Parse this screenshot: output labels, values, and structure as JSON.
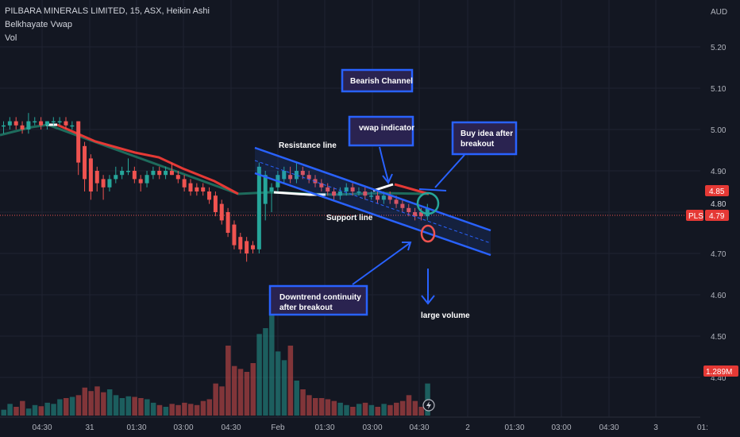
{
  "legend": {
    "symbol_line": "PILBARA MINERALS LIMITED, 15, ASX, Heikin Ashi",
    "indicator_1": "Belkhayate Vwap",
    "indicator_2": "Vol"
  },
  "colors": {
    "background": "#131722",
    "up": "#26a69a",
    "down": "#ef5350",
    "vwap_down": "#e53935",
    "vwap_base": "#1e6b5c",
    "vwap_white": "#ffffff",
    "annotation": "#2962ff",
    "annotation_fill": "#2a2350"
  },
  "price_axis": {
    "currency": "AUD",
    "ticks": [
      "5.20",
      "5.10",
      "5.00",
      "4.90",
      "4.80",
      "4.70",
      "4.60",
      "4.50",
      "4.40"
    ],
    "tags": {
      "price_high": "4.85",
      "price_mid": "4.80",
      "symbol": "PLS",
      "last": "4.79",
      "volume": "1.289M"
    }
  },
  "time_axis": {
    "ticks": [
      "04:30",
      "31",
      "01:30",
      "03:00",
      "04:30",
      "Feb",
      "01:30",
      "03:00",
      "04:30",
      "2",
      "01:30",
      "03:00",
      "04:30",
      "3",
      "01:"
    ]
  },
  "annotations": {
    "bearish_channel": "Bearish Channel",
    "vwap_indicator": "vwap indicator",
    "buy_idea_line1": "Buy idea after",
    "buy_idea_line2": "breakout",
    "resistance": "Resistance line",
    "support": "Support line",
    "downtrend_line1": "Downtrend continuity",
    "downtrend_line2": "after breakout",
    "large_volume": "large volume"
  },
  "chart_data": {
    "type": "candlestick",
    "title": "PILBARA MINERALS LIMITED, 15, ASX, Heikin Ashi",
    "ylim": [
      4.4,
      5.25
    ],
    "last_price": 4.79,
    "candles": [
      {
        "o": 5.01,
        "h": 5.02,
        "l": 4.99,
        "c": 5.01
      },
      {
        "o": 5.01,
        "h": 5.03,
        "l": 5.0,
        "c": 5.02
      },
      {
        "o": 5.02,
        "h": 5.03,
        "l": 5.0,
        "c": 5.01
      },
      {
        "o": 5.01,
        "h": 5.02,
        "l": 4.99,
        "c": 5.0
      },
      {
        "o": 5.0,
        "h": 5.04,
        "l": 4.99,
        "c": 5.02
      },
      {
        "o": 5.02,
        "h": 5.03,
        "l": 5.01,
        "c": 5.02
      },
      {
        "o": 5.02,
        "h": 5.03,
        "l": 5.0,
        "c": 5.01
      },
      {
        "o": 5.01,
        "h": 5.02,
        "l": 5.0,
        "c": 5.02
      },
      {
        "o": 5.02,
        "h": 5.03,
        "l": 5.01,
        "c": 5.02
      },
      {
        "o": 5.02,
        "h": 5.03,
        "l": 5.01,
        "c": 5.02
      },
      {
        "o": 5.02,
        "h": 5.03,
        "l": 5.0,
        "c": 5.01
      },
      {
        "o": 5.01,
        "h": 5.02,
        "l": 5.0,
        "c": 5.01
      },
      {
        "o": 5.02,
        "h": 5.02,
        "l": 4.89,
        "c": 4.92
      },
      {
        "o": 4.96,
        "h": 4.97,
        "l": 4.85,
        "c": 4.88
      },
      {
        "o": 4.93,
        "h": 4.94,
        "l": 4.83,
        "c": 4.85
      },
      {
        "o": 4.9,
        "h": 4.91,
        "l": 4.85,
        "c": 4.87
      },
      {
        "o": 4.88,
        "h": 4.89,
        "l": 4.83,
        "c": 4.86
      },
      {
        "o": 4.86,
        "h": 4.89,
        "l": 4.85,
        "c": 4.88
      },
      {
        "o": 4.88,
        "h": 4.91,
        "l": 4.87,
        "c": 4.89
      },
      {
        "o": 4.89,
        "h": 4.91,
        "l": 4.88,
        "c": 4.9
      },
      {
        "o": 4.9,
        "h": 4.93,
        "l": 4.89,
        "c": 4.9
      },
      {
        "o": 4.9,
        "h": 4.91,
        "l": 4.87,
        "c": 4.88
      },
      {
        "o": 4.88,
        "h": 4.89,
        "l": 4.85,
        "c": 4.87
      },
      {
        "o": 4.87,
        "h": 4.9,
        "l": 4.86,
        "c": 4.89
      },
      {
        "o": 4.89,
        "h": 4.91,
        "l": 4.88,
        "c": 4.9
      },
      {
        "o": 4.9,
        "h": 4.91,
        "l": 4.88,
        "c": 4.89
      },
      {
        "o": 4.89,
        "h": 4.91,
        "l": 4.88,
        "c": 4.9
      },
      {
        "o": 4.9,
        "h": 4.92,
        "l": 4.89,
        "c": 4.89
      },
      {
        "o": 4.89,
        "h": 4.9,
        "l": 4.87,
        "c": 4.88
      },
      {
        "o": 4.88,
        "h": 4.89,
        "l": 4.85,
        "c": 4.86
      },
      {
        "o": 4.87,
        "h": 4.88,
        "l": 4.84,
        "c": 4.85
      },
      {
        "o": 4.86,
        "h": 4.87,
        "l": 4.84,
        "c": 4.85
      },
      {
        "o": 4.86,
        "h": 4.87,
        "l": 4.84,
        "c": 4.85
      },
      {
        "o": 4.85,
        "h": 4.86,
        "l": 4.82,
        "c": 4.83
      },
      {
        "o": 4.84,
        "h": 4.85,
        "l": 4.79,
        "c": 4.8
      },
      {
        "o": 4.82,
        "h": 4.83,
        "l": 4.77,
        "c": 4.78
      },
      {
        "o": 4.8,
        "h": 4.81,
        "l": 4.74,
        "c": 4.75
      },
      {
        "o": 4.77,
        "h": 4.78,
        "l": 4.71,
        "c": 4.72
      },
      {
        "o": 4.74,
        "h": 4.75,
        "l": 4.7,
        "c": 4.71
      },
      {
        "o": 4.73,
        "h": 4.74,
        "l": 4.68,
        "c": 4.7
      },
      {
        "o": 4.72,
        "h": 4.73,
        "l": 4.7,
        "c": 4.71
      },
      {
        "o": 4.71,
        "h": 4.92,
        "l": 4.7,
        "c": 4.91
      },
      {
        "o": 4.82,
        "h": 4.9,
        "l": 4.78,
        "c": 4.89
      },
      {
        "o": 4.85,
        "h": 4.87,
        "l": 4.8,
        "c": 4.86
      },
      {
        "o": 4.86,
        "h": 4.9,
        "l": 4.85,
        "c": 4.89
      },
      {
        "o": 4.88,
        "h": 4.91,
        "l": 4.87,
        "c": 4.9
      },
      {
        "o": 4.89,
        "h": 4.91,
        "l": 4.87,
        "c": 4.88
      },
      {
        "o": 4.88,
        "h": 4.92,
        "l": 4.87,
        "c": 4.9
      },
      {
        "o": 4.9,
        "h": 4.91,
        "l": 4.88,
        "c": 4.89
      },
      {
        "o": 4.89,
        "h": 4.9,
        "l": 4.87,
        "c": 4.88
      },
      {
        "o": 4.88,
        "h": 4.89,
        "l": 4.86,
        "c": 4.87
      },
      {
        "o": 4.87,
        "h": 4.88,
        "l": 4.85,
        "c": 4.86
      },
      {
        "o": 4.86,
        "h": 4.87,
        "l": 4.84,
        "c": 4.85
      },
      {
        "o": 4.85,
        "h": 4.86,
        "l": 4.83,
        "c": 4.84
      },
      {
        "o": 4.84,
        "h": 4.86,
        "l": 4.83,
        "c": 4.85
      },
      {
        "o": 4.85,
        "h": 4.87,
        "l": 4.84,
        "c": 4.86
      },
      {
        "o": 4.86,
        "h": 4.87,
        "l": 4.84,
        "c": 4.85
      },
      {
        "o": 4.85,
        "h": 4.86,
        "l": 4.84,
        "c": 4.85
      },
      {
        "o": 4.85,
        "h": 4.86,
        "l": 4.83,
        "c": 4.84
      },
      {
        "o": 4.84,
        "h": 4.85,
        "l": 4.83,
        "c": 4.84
      },
      {
        "o": 4.84,
        "h": 4.85,
        "l": 4.82,
        "c": 4.83
      },
      {
        "o": 4.83,
        "h": 4.85,
        "l": 4.82,
        "c": 4.84
      },
      {
        "o": 4.84,
        "h": 4.85,
        "l": 4.82,
        "c": 4.83
      },
      {
        "o": 4.83,
        "h": 4.84,
        "l": 4.81,
        "c": 4.82
      },
      {
        "o": 4.82,
        "h": 4.83,
        "l": 4.8,
        "c": 4.81
      },
      {
        "o": 4.81,
        "h": 4.82,
        "l": 4.79,
        "c": 4.8
      },
      {
        "o": 4.8,
        "h": 4.81,
        "l": 4.78,
        "c": 4.79
      },
      {
        "o": 4.8,
        "h": 4.81,
        "l": 4.78,
        "c": 4.79
      },
      {
        "o": 4.79,
        "h": 4.82,
        "l": 4.78,
        "c": 4.81
      }
    ],
    "volume": [
      10,
      20,
      15,
      25,
      12,
      18,
      16,
      22,
      20,
      28,
      30,
      32,
      35,
      48,
      42,
      50,
      40,
      45,
      35,
      30,
      33,
      32,
      30,
      28,
      22,
      18,
      15,
      20,
      18,
      22,
      20,
      18,
      25,
      28,
      55,
      50,
      120,
      85,
      80,
      75,
      90,
      140,
      150,
      180,
      110,
      95,
      120,
      60,
      45,
      35,
      30,
      30,
      28,
      25,
      22,
      18,
      15,
      20,
      22,
      18,
      15,
      20,
      18,
      22,
      25,
      35,
      25,
      15,
      55
    ]
  }
}
